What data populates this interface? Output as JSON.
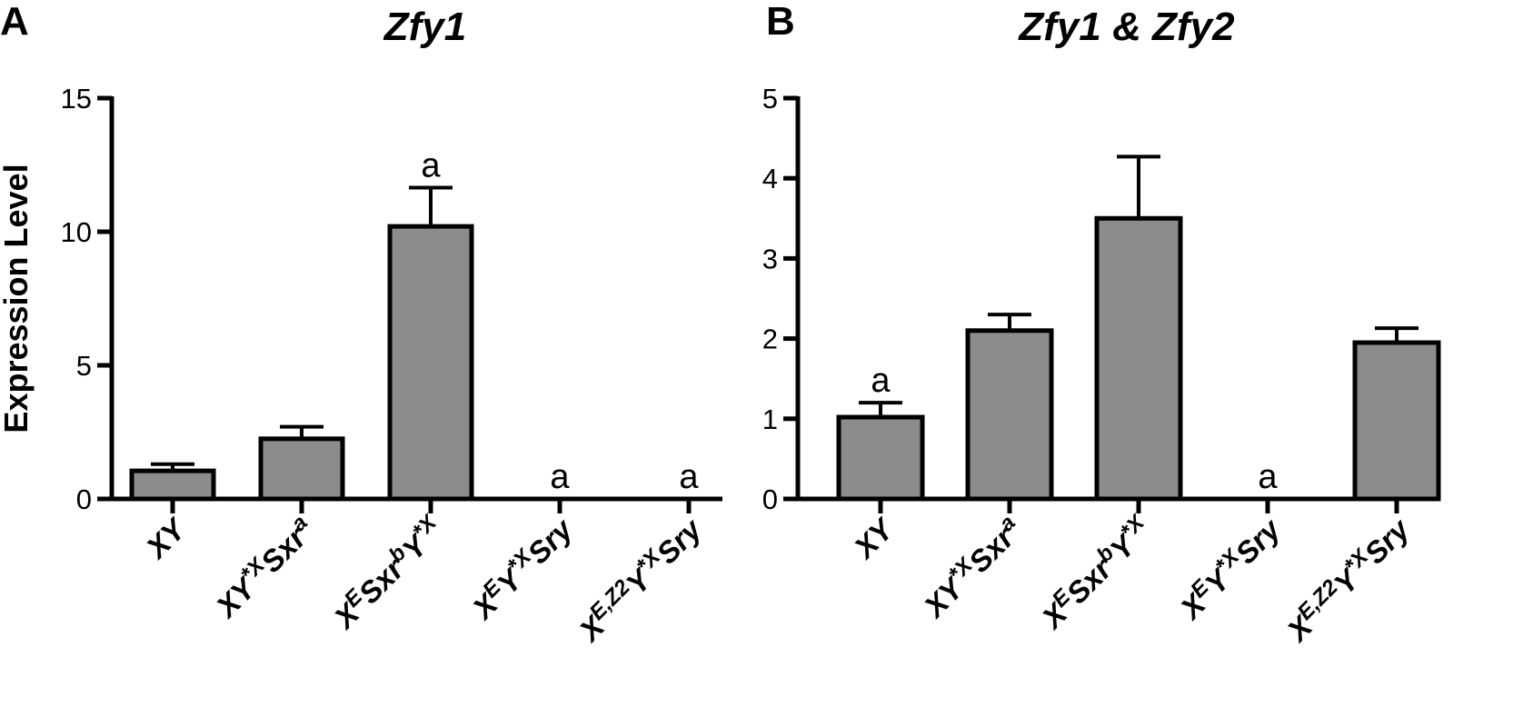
{
  "chart_data": [
    {
      "type": "bar",
      "panel_label": "A",
      "title": "Zfy1",
      "ylabel": "Expression Level",
      "xlabel": "",
      "ylim": [
        0,
        15
      ],
      "yticks": [
        0,
        5,
        10,
        15
      ],
      "ytick_labels": [
        "0",
        "5",
        "10",
        "15"
      ],
      "grid": false,
      "bar_color": "#8c8c8c",
      "categories": [
        {
          "base": "XY",
          "sup": ""
        },
        {
          "base": "XY",
          "sup": "*X",
          "base2": "Sxr",
          "sup2": "a"
        },
        {
          "base": "X",
          "sup": "E",
          "base2": "Sxr",
          "sup2": "b",
          "base3": "Y",
          "sup3": "*X"
        },
        {
          "base": "X",
          "sup": "E",
          "base2": "Y",
          "sup2": "*X",
          "base3": "Sry"
        },
        {
          "base": "X",
          "sup": "E,Z2",
          "base2": "Y",
          "sup2": "*X",
          "base3": "Sry"
        }
      ],
      "values": [
        1.05,
        2.25,
        10.2,
        0,
        0
      ],
      "errors": [
        0.25,
        0.45,
        1.45,
        0,
        0
      ],
      "annotations": [
        "",
        "",
        "a",
        "a",
        "a"
      ]
    },
    {
      "type": "bar",
      "panel_label": "B",
      "title": "Zfy1 & Zfy2",
      "ylabel": "",
      "xlabel": "",
      "ylim": [
        0,
        5
      ],
      "yticks": [
        0,
        1,
        2,
        3,
        4,
        5
      ],
      "ytick_labels": [
        "0",
        "1",
        "2",
        "3",
        "4",
        "5"
      ],
      "grid": false,
      "bar_color": "#8c8c8c",
      "categories": [
        {
          "base": "XY",
          "sup": ""
        },
        {
          "base": "XY",
          "sup": "*X",
          "base2": "Sxr",
          "sup2": "a"
        },
        {
          "base": "X",
          "sup": "E",
          "base2": "Sxr",
          "sup2": "b",
          "base3": "Y",
          "sup3": "*X"
        },
        {
          "base": "X",
          "sup": "E",
          "base2": "Y",
          "sup2": "*X",
          "base3": "Sry"
        },
        {
          "base": "X",
          "sup": "E,Z2",
          "base2": "Y",
          "sup2": "*X",
          "base3": "Sry"
        }
      ],
      "values": [
        1.02,
        2.1,
        3.5,
        0,
        1.95
      ],
      "errors": [
        0.18,
        0.2,
        0.77,
        0,
        0.18
      ],
      "annotations": [
        "a",
        "",
        "",
        "a",
        ""
      ]
    }
  ]
}
